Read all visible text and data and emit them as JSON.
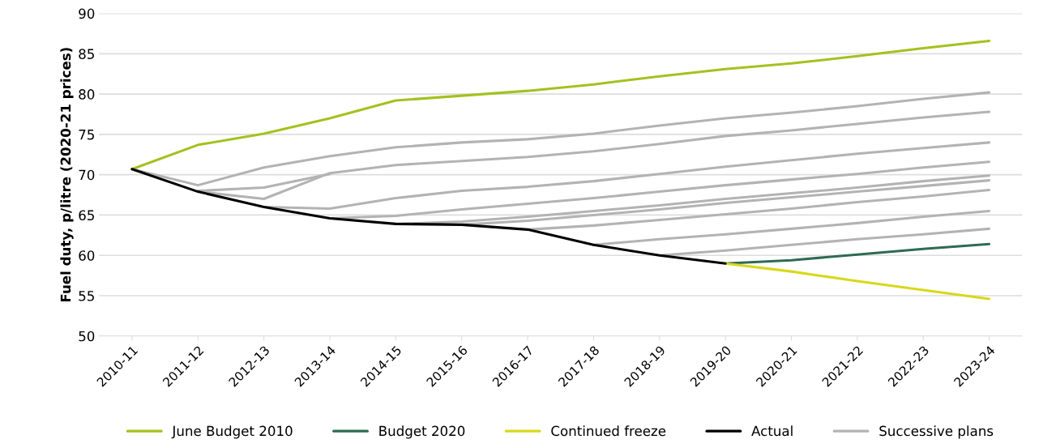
{
  "chart_data": {
    "type": "line",
    "ylabel": "Fuel duty, p/litre (2020-21 prices)",
    "categories": [
      "2010-11",
      "2011-12",
      "2012-13",
      "2013-14",
      "2014-15",
      "2015-16",
      "2016-17",
      "2017-18",
      "2018-19",
      "2019-20",
      "2020-21",
      "2021-22",
      "2022-23",
      "2023-24"
    ],
    "ylim": [
      50,
      90
    ],
    "yticks": [
      50,
      55,
      60,
      65,
      70,
      75,
      80,
      85,
      90
    ],
    "grid": "y",
    "legend": "bottom",
    "marker": "none",
    "line_style": "solid",
    "series": [
      {
        "name": "Successive plans",
        "color": "#b3b3b3",
        "values": [
          70.7,
          68.7,
          70.9,
          72.3,
          73.4,
          74.0,
          74.4,
          75.1,
          76.1,
          77.0,
          77.7,
          78.5,
          79.4,
          80.2
        ]
      },
      {
        "color": "#b3b3b3",
        "values": [
          null,
          67.9,
          67.0,
          70.2,
          71.2,
          71.7,
          72.2,
          72.9,
          73.8,
          74.8,
          75.5,
          76.3,
          77.1,
          77.8
        ]
      },
      {
        "color": "#b3b3b3",
        "values": [
          null,
          68.0,
          68.4,
          70.1,
          null,
          null,
          null,
          null,
          null,
          null,
          null,
          null,
          null,
          null
        ]
      },
      {
        "color": "#b3b3b3",
        "values": [
          null,
          null,
          66.0,
          65.8,
          67.1,
          68.0,
          68.5,
          69.2,
          70.1,
          71.0,
          71.8,
          72.6,
          73.3,
          74.0
        ]
      },
      {
        "color": "#b3b3b3",
        "values": [
          null,
          null,
          null,
          64.6,
          64.9,
          65.7,
          66.4,
          67.1,
          67.9,
          68.7,
          69.4,
          70.1,
          70.9,
          71.6
        ]
      },
      {
        "color": "#b3b3b3",
        "values": [
          null,
          null,
          null,
          null,
          63.9,
          64.2,
          64.8,
          65.5,
          66.2,
          67.0,
          67.7,
          68.4,
          69.2,
          69.9
        ]
      },
      {
        "color": "#b3b3b3",
        "values": [
          null,
          null,
          null,
          null,
          null,
          63.8,
          64.3,
          65.0,
          65.7,
          66.5,
          67.2,
          67.9,
          68.6,
          69.3
        ]
      },
      {
        "color": "#b3b3b3",
        "values": [
          null,
          null,
          null,
          null,
          null,
          null,
          63.2,
          63.7,
          64.4,
          65.1,
          65.8,
          66.6,
          67.3,
          68.1
        ]
      },
      {
        "color": "#b3b3b3",
        "values": [
          null,
          null,
          null,
          null,
          null,
          null,
          null,
          61.3,
          62.0,
          62.6,
          63.3,
          64.0,
          64.8,
          65.5
        ]
      },
      {
        "color": "#b3b3b3",
        "values": [
          null,
          null,
          null,
          null,
          null,
          null,
          null,
          null,
          60.0,
          60.6,
          61.3,
          62.0,
          62.6,
          63.3
        ]
      },
      {
        "name": "June Budget 2010",
        "color": "#a4c11f",
        "values": [
          70.7,
          73.7,
          75.1,
          77.0,
          79.2,
          79.8,
          80.4,
          81.2,
          82.2,
          83.1,
          83.8,
          84.7,
          85.7,
          86.6
        ]
      },
      {
        "name": "Budget 2020",
        "color": "#2e6b50",
        "values": [
          null,
          null,
          null,
          null,
          null,
          null,
          null,
          null,
          null,
          59.0,
          59.4,
          60.1,
          60.8,
          61.4
        ]
      },
      {
        "name": "Continued freeze",
        "color": "#d8d81c",
        "values": [
          null,
          null,
          null,
          null,
          null,
          null,
          null,
          null,
          null,
          59.0,
          58.0,
          56.8,
          55.7,
          54.6
        ]
      },
      {
        "name": "Actual",
        "color": "#000000",
        "values": [
          70.7,
          67.9,
          66.0,
          64.6,
          63.9,
          63.8,
          63.2,
          61.3,
          60.0,
          59.0,
          null,
          null,
          null,
          null
        ]
      }
    ]
  }
}
